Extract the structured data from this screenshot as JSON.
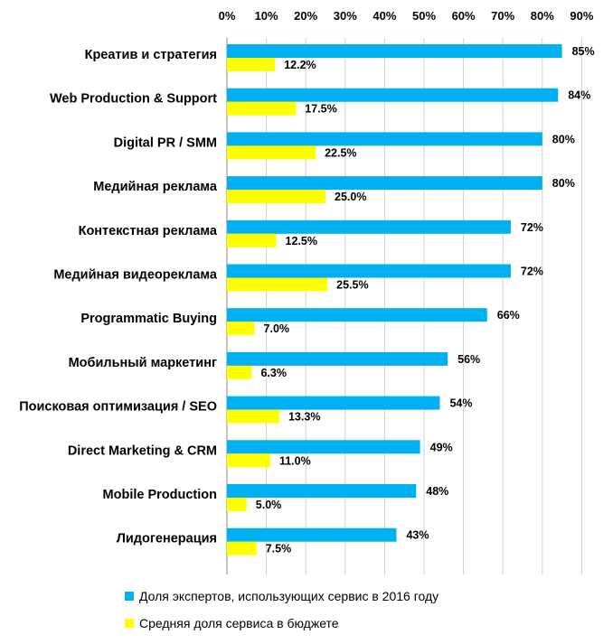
{
  "chart_data": {
    "type": "bar",
    "orientation": "horizontal",
    "title": "",
    "xlabel": "",
    "ylabel": "",
    "xlim": [
      0,
      90
    ],
    "x_ticks": [
      "0%",
      "10%",
      "20%",
      "30%",
      "40%",
      "50%",
      "60%",
      "70%",
      "80%",
      "90%"
    ],
    "x_tick_values": [
      0,
      10,
      20,
      30,
      40,
      50,
      60,
      70,
      80,
      90
    ],
    "axis_position": "top",
    "grid": true,
    "legend_position": "bottom",
    "categories": [
      "Креатив и стратегия",
      "Web Production & Support",
      "Digital PR / SMM",
      "Медийная реклама",
      "Контекстная реклама",
      "Медийная видеореклама",
      "Programmatic Buying",
      "Мобильный маркетинг",
      "Поисковая оптимизация / SEO",
      "Direct Marketing & CRM",
      "Mobile Production",
      "Лидогенерация"
    ],
    "series": [
      {
        "name": "Доля экспертов, использующих сервис в 2016 году",
        "color": "#00B0F0",
        "values": [
          85,
          84,
          80,
          80,
          72,
          72,
          66,
          56,
          54,
          49,
          48,
          43
        ],
        "labels": [
          "85%",
          "84%",
          "80%",
          "80%",
          "72%",
          "72%",
          "66%",
          "56%",
          "54%",
          "49%",
          "48%",
          "43%"
        ]
      },
      {
        "name": "Средняя доля сервиса в бюджете",
        "color": "#FFFF00",
        "values": [
          12.2,
          17.5,
          22.5,
          25.0,
          12.5,
          25.5,
          7.0,
          6.3,
          13.3,
          11.0,
          5.0,
          7.5
        ],
        "labels": [
          "12.2%",
          "17.5%",
          "22.5%",
          "25.0%",
          "12.5%",
          "25.5%",
          "7.0%",
          "6.3%",
          "13.3%",
          "11.0%",
          "5.0%",
          "7.5%"
        ]
      }
    ]
  }
}
